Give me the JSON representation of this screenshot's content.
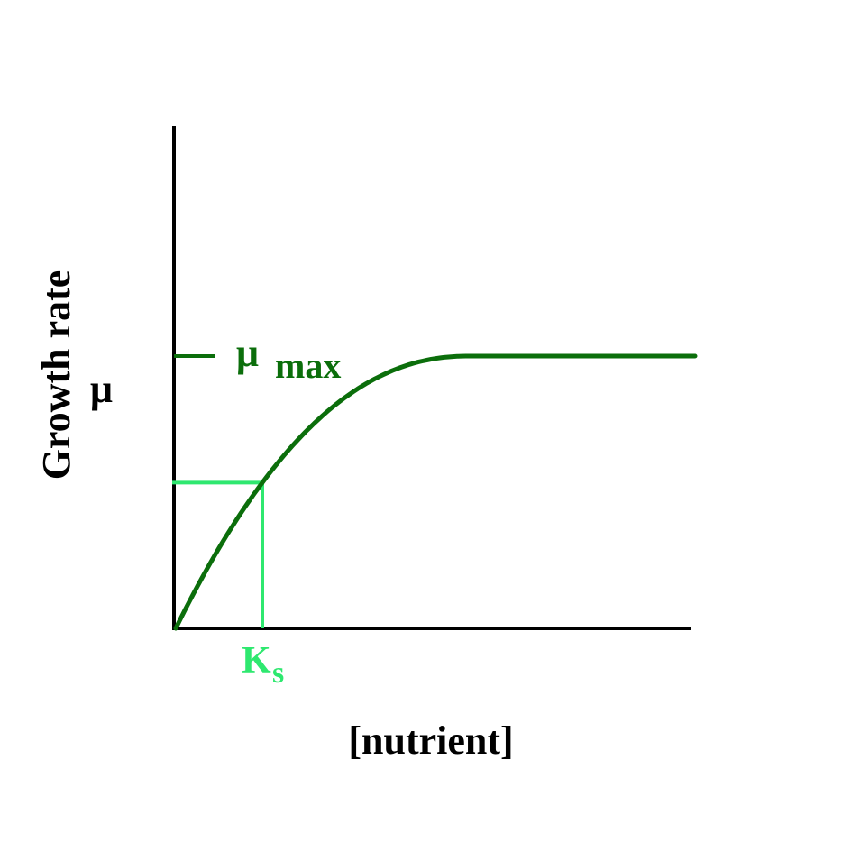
{
  "colors": {
    "curve": "#0b6e0b",
    "ks_marker": "#2ee86f",
    "axes": "#000000"
  },
  "axes": {
    "y_label": "Growth rate",
    "y_symbol": "μ",
    "x_label": "[nutrient]"
  },
  "mu_max": {
    "symbol": "μ",
    "subscript": "max"
  },
  "ks": {
    "symbol": "K",
    "subscript": "s"
  },
  "curve": {
    "equation": "μ = μmax·S/(Ks+S)",
    "mu_max": 1,
    "ks_x": 1,
    "ks_y": 0.5,
    "x_max": 6,
    "plateau_x": 3.4
  }
}
